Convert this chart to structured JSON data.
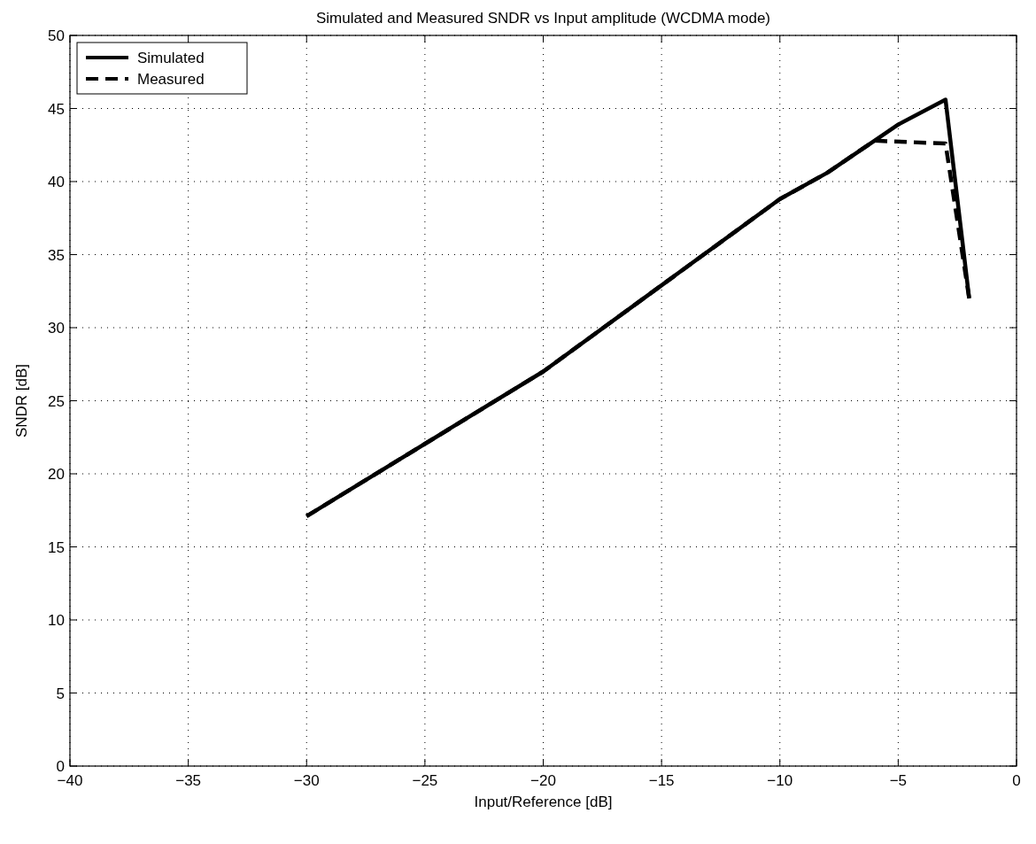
{
  "chart_data": {
    "type": "line",
    "title": "Simulated and Measured SNDR vs Input amplitude (WCDMA mode)",
    "xlabel": "Input/Reference [dB]",
    "ylabel": "SNDR [dB]",
    "xlim": [
      -40,
      0
    ],
    "xticks": [
      -40,
      -35,
      -30,
      -25,
      -20,
      -15,
      -10,
      -5,
      0
    ],
    "ylim": [
      0,
      50
    ],
    "yticks": [
      0,
      5,
      10,
      15,
      20,
      25,
      30,
      35,
      40,
      45,
      50
    ],
    "grid": true,
    "legend": "top left",
    "series": [
      {
        "name": "Simulated",
        "color": "#000000",
        "line_style": "solid",
        "x": [
          -30,
          -20,
          -10,
          -8,
          -6,
          -5,
          -3,
          -2
        ],
        "values": [
          17.1,
          27,
          38.8,
          40.6,
          42.8,
          43.9,
          45.6,
          32
        ]
      },
      {
        "name": "Measured",
        "color": "#000000",
        "line_style": "dashed",
        "x": [
          -30,
          -20,
          -10,
          -8,
          -6,
          -3,
          -2
        ],
        "values": [
          17.1,
          27,
          38.8,
          40.6,
          42.8,
          42.6,
          32
        ]
      }
    ]
  }
}
